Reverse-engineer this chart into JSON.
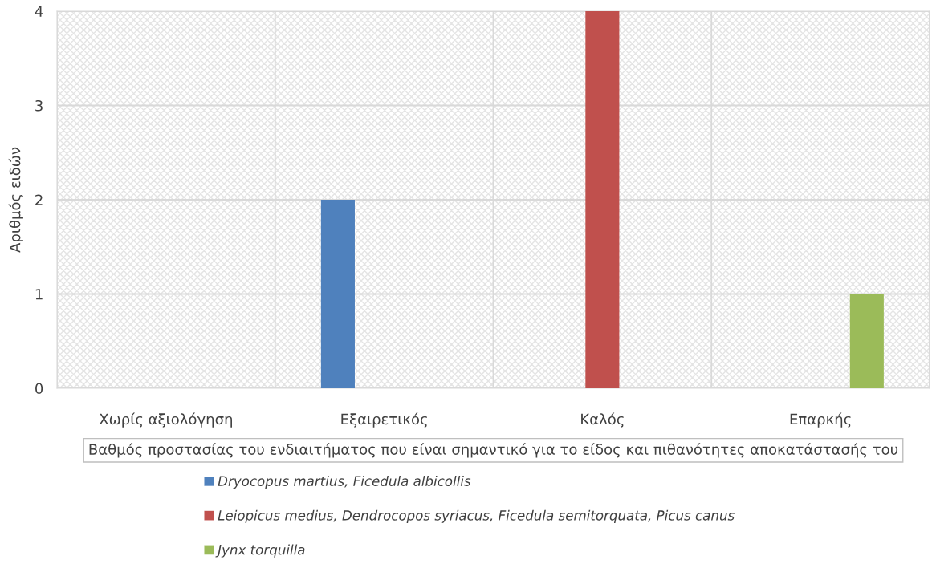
{
  "chart_data": {
    "type": "bar",
    "xlabel": "Βαθμός προστασίας του ενδιαιτήματος που είναι σημαντικό για το είδος και πιθανότητες αποκατάστασής του",
    "ylabel": "Αριθμός ειδών",
    "categories": [
      "Χωρίς αξιολόγηση",
      "Εξαιρετικός",
      "Καλός",
      "Επαρκής"
    ],
    "series": [
      {
        "name": "Dryocopus martius, Ficedula albicollis",
        "color": "#4f81bd",
        "values": [
          0,
          2,
          0,
          0
        ]
      },
      {
        "name": "Leiopicus medius, Dendrocopos syriacus, Ficedula semitorquata, Picus canus",
        "color": "#c0504d",
        "values": [
          0,
          0,
          4,
          0
        ]
      },
      {
        "name": "Jynx torquilla",
        "color": "#9bbb59",
        "values": [
          0,
          0,
          0,
          1
        ]
      }
    ],
    "ylim": [
      0,
      4
    ],
    "yticks": [
      0,
      1,
      2,
      3,
      4
    ],
    "grid": true,
    "legend": "bottom"
  }
}
